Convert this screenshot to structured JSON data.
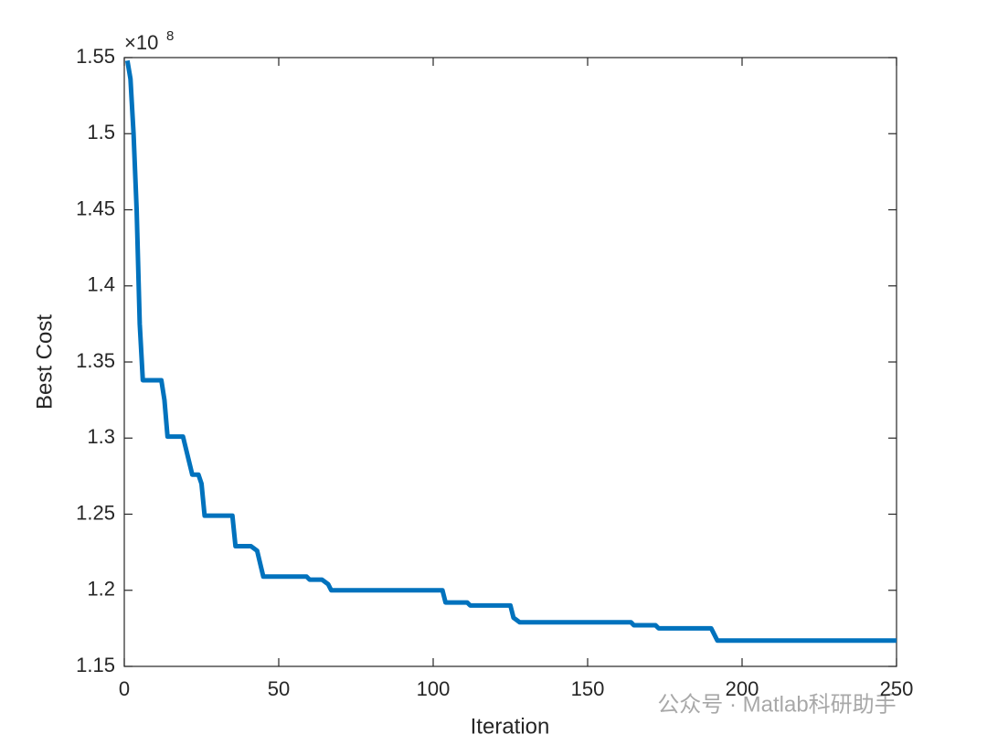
{
  "chart_data": {
    "type": "line",
    "x_label": "Iteration",
    "y_label": "Best Cost",
    "y_scale_label": "×10",
    "y_scale_exponent": 8,
    "watermark": "公众号 · Matlab科研助手",
    "x": [
      1,
      2,
      3,
      4,
      5,
      6,
      12,
      13,
      14,
      19,
      22,
      24,
      25,
      26,
      35,
      36,
      41,
      43,
      45,
      59,
      60,
      64,
      66,
      67,
      103,
      104,
      111,
      112,
      125,
      126,
      128,
      164,
      165,
      172,
      173,
      190,
      192,
      250
    ],
    "series": [
      {
        "name": "Best Cost",
        "color": "#0072bd",
        "values": [
          1.548,
          1.536,
          1.5,
          1.45,
          1.375,
          1.338,
          1.338,
          1.325,
          1.301,
          1.301,
          1.276,
          1.276,
          1.27,
          1.249,
          1.249,
          1.229,
          1.229,
          1.226,
          1.209,
          1.209,
          1.207,
          1.207,
          1.204,
          1.2,
          1.2,
          1.192,
          1.192,
          1.19,
          1.19,
          1.182,
          1.179,
          1.179,
          1.177,
          1.177,
          1.175,
          1.175,
          1.167,
          1.167
        ]
      }
    ],
    "xlim": [
      0,
      250
    ],
    "xticks": [
      0,
      50,
      100,
      150,
      200,
      250
    ],
    "ylim": [
      1.15,
      1.55
    ],
    "yticks": [
      1.15,
      1.2,
      1.25,
      1.3,
      1.35,
      1.4,
      1.45,
      1.5,
      1.55
    ]
  }
}
